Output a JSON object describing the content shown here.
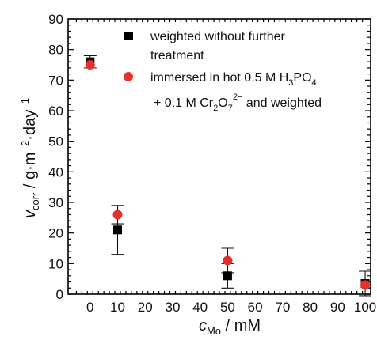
{
  "chart_data": {
    "type": "scatter",
    "x_label": {
      "main": "c",
      "sub": "Mo",
      "unit": " / mM"
    },
    "y_label": {
      "main": "v",
      "sub": "corr",
      "unit_prefix": " / g·m",
      "unit_sup1": "−2",
      "unit_mid": "·day",
      "unit_sup2": "−1"
    },
    "xlim": [
      -8,
      102
    ],
    "ylim": [
      0,
      90
    ],
    "x_ticks": [
      0,
      10,
      20,
      30,
      40,
      50,
      60,
      70,
      80,
      90,
      100
    ],
    "y_ticks": [
      0,
      10,
      20,
      30,
      40,
      50,
      60,
      70,
      80,
      90
    ],
    "legend_position": "top-right",
    "series": [
      {
        "name": "weighted without further treatment",
        "marker": "square",
        "color": "#000000",
        "points": [
          {
            "x": 0,
            "y": 76,
            "err": 2
          },
          {
            "x": 10,
            "y": 21,
            "err": 8
          },
          {
            "x": 50,
            "y": 6,
            "err": 4
          },
          {
            "x": 100,
            "y": 3.5,
            "err": 4
          }
        ]
      },
      {
        "name": "immersed in hot 0.5 M H3PO4 + 0.1 M Cr2O7 2− and weighted",
        "marker": "circle",
        "color": "#e8302a",
        "points": [
          {
            "x": 0,
            "y": 75,
            "err": 0
          },
          {
            "x": 10,
            "y": 26,
            "err": 3
          },
          {
            "x": 50,
            "y": 11,
            "err": 4
          },
          {
            "x": 100,
            "y": 3,
            "err": 0
          }
        ]
      }
    ]
  },
  "legend": {
    "item1_line1": "weighted without further",
    "item1_line2": "treatment",
    "item2_line1_a": "immersed in hot 0.5 M H",
    "item2_line1_sub1": "3",
    "item2_line1_b": "PO",
    "item2_line1_sub2": "4",
    "item2_line2_a": "+ 0.1 M Cr",
    "item2_line2_sub1": "2",
    "item2_line2_b": "O",
    "item2_line2_sub2": "7",
    "item2_line2_sup": "2−",
    "item2_line2_c": " and weighted"
  }
}
